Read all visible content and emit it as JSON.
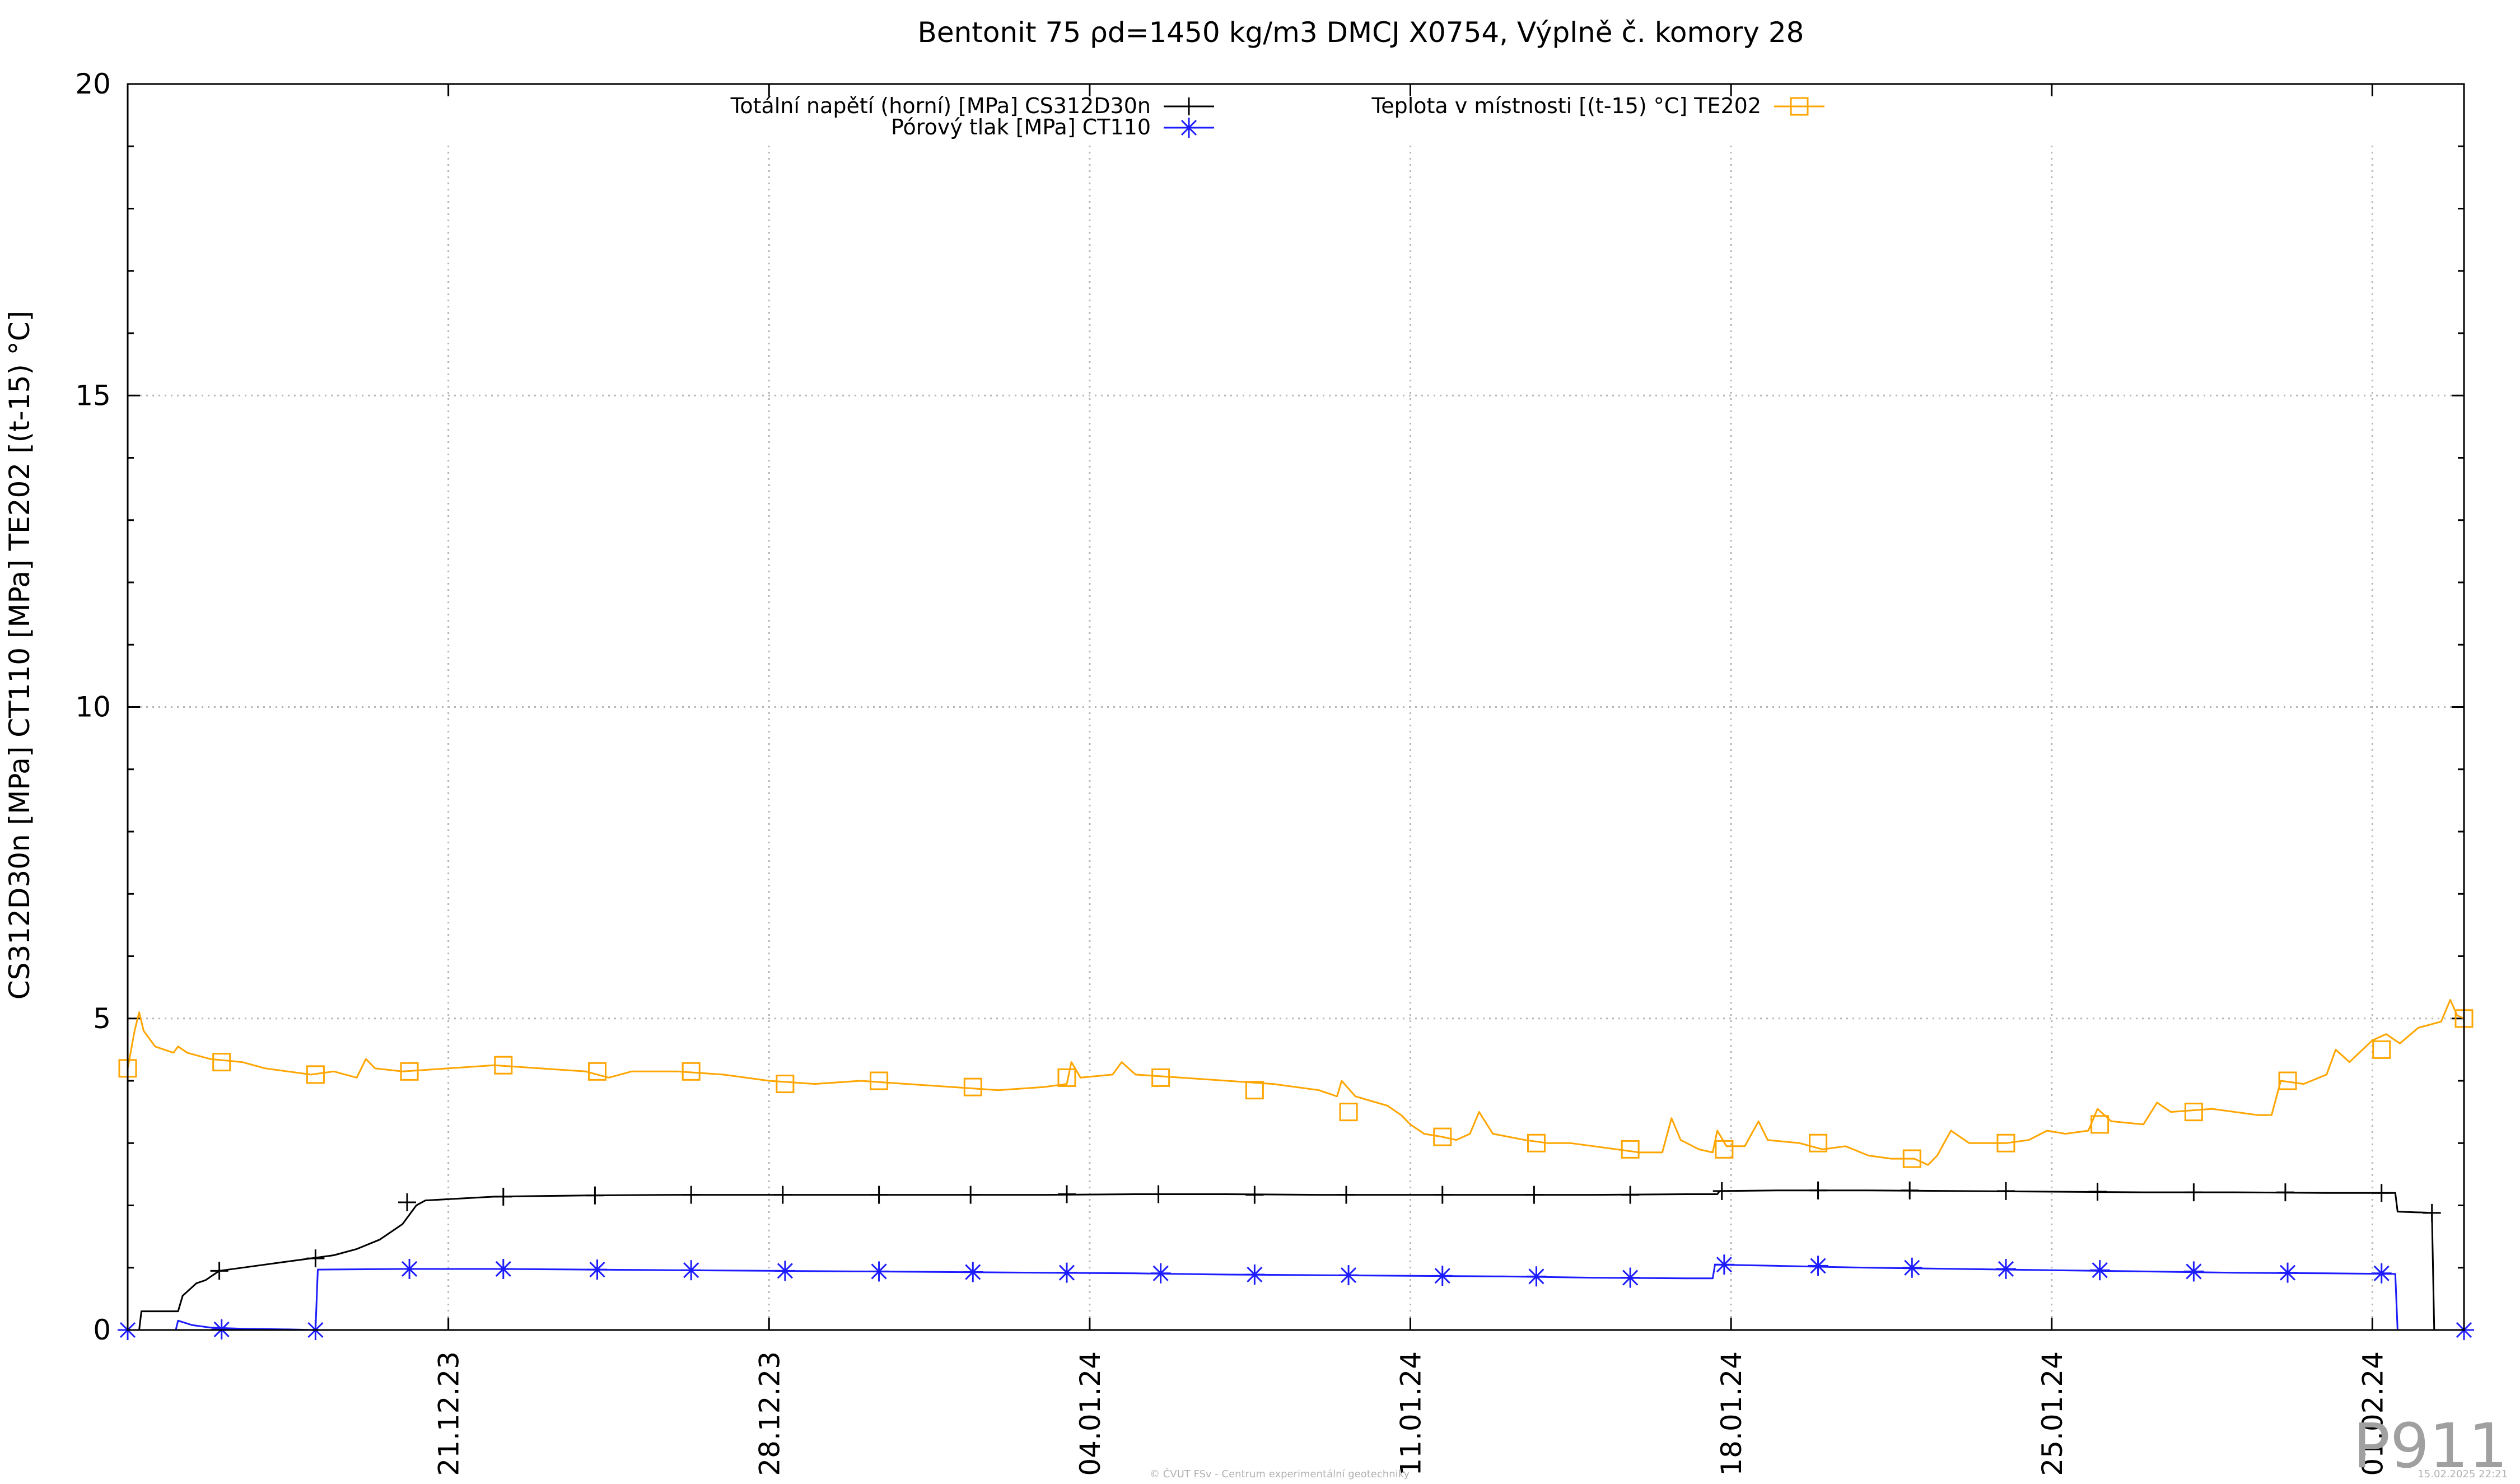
{
  "chart_data": {
    "type": "line",
    "title": "Bentonit 75 ρd=1450 kg/m3 DMCJ X0754, Výplně č. komory 28",
    "ylabel": "CS312D30n [MPa] CT110 [MPa] TE202 [(t-15) °C]",
    "xlabel": "",
    "ylim": [
      0,
      20
    ],
    "yticks": [
      "0",
      "5",
      "10",
      "15",
      "20"
    ],
    "x_axis": {
      "start": "14.12.23",
      "end": "06.02.24",
      "ticks": [
        {
          "day": 7,
          "label": "21.12.23"
        },
        {
          "day": 14,
          "label": "28.12.23"
        },
        {
          "day": 21,
          "label": "04.01.24"
        },
        {
          "day": 28,
          "label": "11.01.24"
        },
        {
          "day": 35,
          "label": "18.01.24"
        },
        {
          "day": 42,
          "label": "25.01.24"
        },
        {
          "day": 49,
          "label": "01.02.24"
        }
      ]
    },
    "grid": true,
    "legend_placement": "top",
    "series": [
      {
        "name": "Totální napětí (horní) [MPa] CS312D30n",
        "color": "#000000",
        "marker": "plus",
        "points": [
          [
            0.0,
            0.0
          ],
          [
            0.25,
            0.0
          ],
          [
            0.3,
            0.3
          ],
          [
            1.0,
            0.3
          ],
          [
            1.1,
            0.3
          ],
          [
            1.2,
            0.55
          ],
          [
            1.5,
            0.75
          ],
          [
            1.7,
            0.8
          ],
          [
            2.0,
            0.95
          ],
          [
            2.5,
            1.0
          ],
          [
            3.0,
            1.05
          ],
          [
            3.5,
            1.1
          ],
          [
            4.0,
            1.15
          ],
          [
            4.5,
            1.2
          ],
          [
            5.0,
            1.3
          ],
          [
            5.5,
            1.45
          ],
          [
            6.0,
            1.7
          ],
          [
            6.3,
            2.0
          ],
          [
            6.5,
            2.08
          ],
          [
            7.0,
            2.1
          ],
          [
            8.0,
            2.14
          ],
          [
            9.0,
            2.15
          ],
          [
            10.0,
            2.16
          ],
          [
            12.0,
            2.17
          ],
          [
            14.0,
            2.17
          ],
          [
            16.0,
            2.17
          ],
          [
            18.0,
            2.17
          ],
          [
            20.0,
            2.17
          ],
          [
            22.0,
            2.18
          ],
          [
            24.0,
            2.18
          ],
          [
            26.0,
            2.17
          ],
          [
            28.0,
            2.17
          ],
          [
            30.0,
            2.17
          ],
          [
            32.0,
            2.17
          ],
          [
            34.0,
            2.18
          ],
          [
            34.7,
            2.18
          ],
          [
            34.75,
            2.23
          ],
          [
            36.0,
            2.24
          ],
          [
            38.0,
            2.24
          ],
          [
            40.0,
            2.23
          ],
          [
            42.0,
            2.22
          ],
          [
            44.0,
            2.21
          ],
          [
            46.0,
            2.21
          ],
          [
            48.0,
            2.2
          ],
          [
            49.5,
            2.2
          ],
          [
            49.55,
            1.9
          ],
          [
            50.3,
            1.88
          ],
          [
            50.35,
            0.0
          ],
          [
            51.0,
            0.0
          ]
        ],
        "marker_points": [
          [
            0.0,
            0.0
          ],
          [
            2.0,
            0.95
          ],
          [
            4.1,
            1.15
          ],
          [
            6.1,
            2.05
          ],
          [
            8.2,
            2.14
          ],
          [
            10.2,
            2.16
          ],
          [
            12.3,
            2.17
          ],
          [
            14.3,
            2.17
          ],
          [
            16.4,
            2.17
          ],
          [
            18.4,
            2.17
          ],
          [
            20.5,
            2.18
          ],
          [
            22.5,
            2.18
          ],
          [
            24.6,
            2.17
          ],
          [
            26.6,
            2.17
          ],
          [
            28.7,
            2.17
          ],
          [
            30.7,
            2.17
          ],
          [
            32.8,
            2.17
          ],
          [
            34.8,
            2.23
          ],
          [
            36.9,
            2.24
          ],
          [
            38.9,
            2.24
          ],
          [
            41.0,
            2.23
          ],
          [
            43.0,
            2.22
          ],
          [
            45.1,
            2.21
          ],
          [
            47.1,
            2.21
          ],
          [
            49.2,
            2.2
          ],
          [
            50.3,
            1.88
          ]
        ]
      },
      {
        "name": "Pórový tlak [MPa] CT110",
        "color": "#1c1cff",
        "marker": "star",
        "points": [
          [
            0.0,
            0.0
          ],
          [
            1.05,
            0.0
          ],
          [
            1.1,
            0.15
          ],
          [
            1.4,
            0.08
          ],
          [
            1.8,
            0.04
          ],
          [
            2.5,
            0.02
          ],
          [
            3.5,
            0.01
          ],
          [
            4.1,
            0.0
          ],
          [
            4.15,
            0.97
          ],
          [
            6.0,
            0.98
          ],
          [
            8.0,
            0.98
          ],
          [
            10.0,
            0.97
          ],
          [
            12.0,
            0.96
          ],
          [
            14.0,
            0.95
          ],
          [
            16.0,
            0.94
          ],
          [
            18.0,
            0.93
          ],
          [
            20.0,
            0.92
          ],
          [
            22.0,
            0.91
          ],
          [
            24.0,
            0.89
          ],
          [
            26.0,
            0.88
          ],
          [
            28.0,
            0.87
          ],
          [
            30.0,
            0.86
          ],
          [
            32.0,
            0.84
          ],
          [
            34.0,
            0.83
          ],
          [
            34.6,
            0.83
          ],
          [
            34.65,
            1.05
          ],
          [
            36.0,
            1.03
          ],
          [
            38.0,
            1.0
          ],
          [
            40.0,
            0.98
          ],
          [
            42.0,
            0.96
          ],
          [
            44.0,
            0.94
          ],
          [
            46.0,
            0.92
          ],
          [
            48.0,
            0.91
          ],
          [
            49.5,
            0.9
          ],
          [
            49.55,
            0.0
          ],
          [
            51.0,
            0.0
          ]
        ],
        "marker_points": [
          [
            0.0,
            0.0
          ],
          [
            2.05,
            0.01
          ],
          [
            4.1,
            0.0
          ],
          [
            6.15,
            0.98
          ],
          [
            8.2,
            0.98
          ],
          [
            10.25,
            0.97
          ],
          [
            12.3,
            0.96
          ],
          [
            14.35,
            0.95
          ],
          [
            16.4,
            0.94
          ],
          [
            18.45,
            0.93
          ],
          [
            20.5,
            0.92
          ],
          [
            22.55,
            0.91
          ],
          [
            24.6,
            0.89
          ],
          [
            26.65,
            0.88
          ],
          [
            28.7,
            0.87
          ],
          [
            30.75,
            0.86
          ],
          [
            32.8,
            0.84
          ],
          [
            34.85,
            1.05
          ],
          [
            36.9,
            1.03
          ],
          [
            38.95,
            1.0
          ],
          [
            41.0,
            0.98
          ],
          [
            43.05,
            0.96
          ],
          [
            45.1,
            0.94
          ],
          [
            47.15,
            0.92
          ],
          [
            49.2,
            0.91
          ],
          [
            51.0,
            0.0
          ]
        ]
      },
      {
        "name": "Teplota v místnosti [(t-15) °C] TE202",
        "color": "#ffa500",
        "marker": "square",
        "points": [
          [
            0.0,
            4.2
          ],
          [
            0.15,
            4.8
          ],
          [
            0.25,
            5.1
          ],
          [
            0.35,
            4.8
          ],
          [
            0.6,
            4.55
          ],
          [
            1.0,
            4.45
          ],
          [
            1.1,
            4.55
          ],
          [
            1.3,
            4.45
          ],
          [
            1.8,
            4.35
          ],
          [
            2.5,
            4.3
          ],
          [
            3.0,
            4.2
          ],
          [
            3.5,
            4.15
          ],
          [
            4.0,
            4.1
          ],
          [
            4.5,
            4.15
          ],
          [
            5.0,
            4.05
          ],
          [
            5.2,
            4.35
          ],
          [
            5.4,
            4.2
          ],
          [
            6.0,
            4.15
          ],
          [
            7.0,
            4.2
          ],
          [
            8.0,
            4.25
          ],
          [
            9.0,
            4.2
          ],
          [
            10.0,
            4.15
          ],
          [
            10.5,
            4.05
          ],
          [
            11.0,
            4.15
          ],
          [
            12.0,
            4.15
          ],
          [
            13.0,
            4.1
          ],
          [
            14.0,
            4.0
          ],
          [
            15.0,
            3.95
          ],
          [
            16.0,
            4.0
          ],
          [
            17.0,
            3.95
          ],
          [
            18.0,
            3.9
          ],
          [
            19.0,
            3.85
          ],
          [
            20.0,
            3.9
          ],
          [
            20.5,
            3.95
          ],
          [
            20.6,
            4.3
          ],
          [
            20.8,
            4.05
          ],
          [
            21.5,
            4.1
          ],
          [
            21.7,
            4.3
          ],
          [
            22.0,
            4.1
          ],
          [
            23.0,
            4.05
          ],
          [
            24.0,
            4.0
          ],
          [
            25.0,
            3.95
          ],
          [
            26.0,
            3.85
          ],
          [
            26.4,
            3.75
          ],
          [
            26.5,
            4.0
          ],
          [
            26.8,
            3.75
          ],
          [
            27.5,
            3.6
          ],
          [
            27.8,
            3.45
          ],
          [
            28.0,
            3.3
          ],
          [
            28.3,
            3.15
          ],
          [
            28.7,
            3.1
          ],
          [
            29.0,
            3.05
          ],
          [
            29.3,
            3.15
          ],
          [
            29.5,
            3.5
          ],
          [
            29.8,
            3.15
          ],
          [
            30.5,
            3.05
          ],
          [
            31.0,
            3.0
          ],
          [
            31.5,
            3.0
          ],
          [
            32.0,
            2.95
          ],
          [
            32.5,
            2.9
          ],
          [
            33.0,
            2.85
          ],
          [
            33.5,
            2.85
          ],
          [
            33.7,
            3.4
          ],
          [
            33.9,
            3.05
          ],
          [
            34.3,
            2.9
          ],
          [
            34.6,
            2.85
          ],
          [
            34.7,
            3.2
          ],
          [
            34.9,
            2.95
          ],
          [
            35.3,
            2.95
          ],
          [
            35.6,
            3.35
          ],
          [
            35.8,
            3.05
          ],
          [
            36.5,
            3.0
          ],
          [
            37.0,
            2.9
          ],
          [
            37.5,
            2.95
          ],
          [
            38.0,
            2.8
          ],
          [
            38.5,
            2.75
          ],
          [
            39.0,
            2.75
          ],
          [
            39.3,
            2.65
          ],
          [
            39.5,
            2.8
          ],
          [
            39.8,
            3.2
          ],
          [
            40.2,
            3.0
          ],
          [
            41.0,
            3.0
          ],
          [
            41.5,
            3.05
          ],
          [
            41.9,
            3.2
          ],
          [
            42.3,
            3.15
          ],
          [
            42.8,
            3.2
          ],
          [
            43.0,
            3.55
          ],
          [
            43.3,
            3.35
          ],
          [
            44.0,
            3.3
          ],
          [
            44.3,
            3.65
          ],
          [
            44.6,
            3.5
          ],
          [
            45.5,
            3.55
          ],
          [
            46.5,
            3.45
          ],
          [
            46.8,
            3.45
          ],
          [
            47.0,
            4.0
          ],
          [
            47.5,
            3.95
          ],
          [
            48.0,
            4.1
          ],
          [
            48.2,
            4.5
          ],
          [
            48.5,
            4.3
          ],
          [
            49.0,
            4.65
          ],
          [
            49.3,
            4.75
          ],
          [
            49.6,
            4.6
          ],
          [
            50.0,
            4.85
          ],
          [
            50.5,
            4.95
          ],
          [
            50.7,
            5.3
          ],
          [
            50.85,
            5.05
          ],
          [
            51.0,
            5.0
          ]
        ],
        "marker_points": [
          [
            0.0,
            4.2
          ],
          [
            2.05,
            4.3
          ],
          [
            4.1,
            4.1
          ],
          [
            6.15,
            4.15
          ],
          [
            8.2,
            4.25
          ],
          [
            10.25,
            4.15
          ],
          [
            12.3,
            4.15
          ],
          [
            14.35,
            3.95
          ],
          [
            16.4,
            4.0
          ],
          [
            18.45,
            3.9
          ],
          [
            20.5,
            4.05
          ],
          [
            22.55,
            4.05
          ],
          [
            24.6,
            3.85
          ],
          [
            26.65,
            3.5
          ],
          [
            28.7,
            3.1
          ],
          [
            30.75,
            3.0
          ],
          [
            32.8,
            2.9
          ],
          [
            34.85,
            2.9
          ],
          [
            36.9,
            3.0
          ],
          [
            38.95,
            2.75
          ],
          [
            41.0,
            3.0
          ],
          [
            43.05,
            3.3
          ],
          [
            45.1,
            3.5
          ],
          [
            47.15,
            4.0
          ],
          [
            49.2,
            4.5
          ],
          [
            51.0,
            5.0
          ]
        ]
      }
    ]
  },
  "watermark": "P911",
  "footer": {
    "center": "© ČVUT FSv - Centrum experimentální geotechniky",
    "right": "15.02.2025 22:21"
  }
}
